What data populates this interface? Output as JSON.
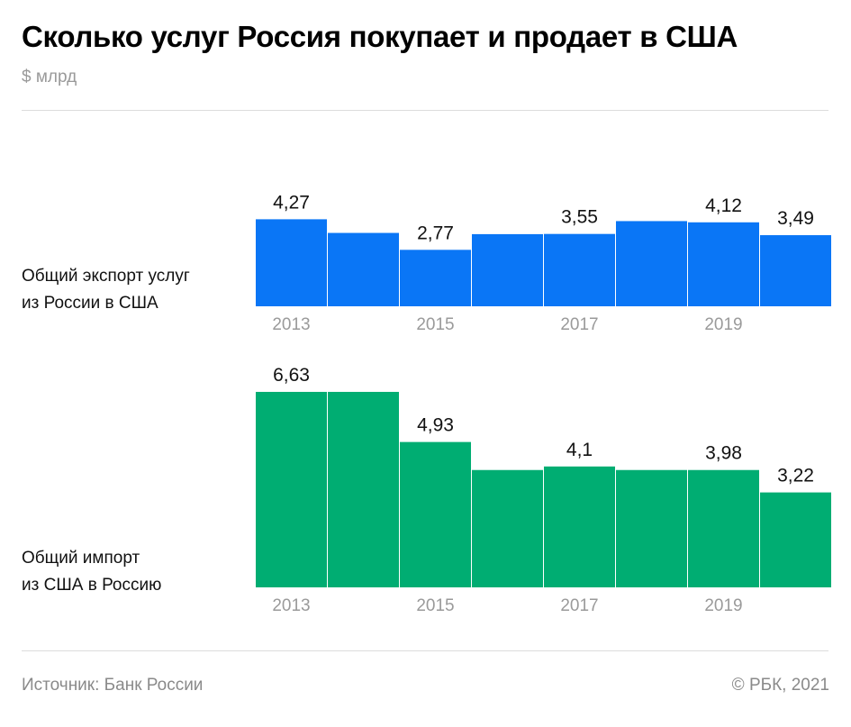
{
  "header": {
    "title": "Сколько услуг Россия покупает и продает в США",
    "subtitle": "$ млрд"
  },
  "footer": {
    "source": "Источник:  Банк России",
    "copyright": "©  РБК, 2021"
  },
  "chart_data": [
    {
      "type": "bar",
      "title": "",
      "label_line1": "Общий экспорт услуг",
      "label_line2": "из России в США",
      "categories": [
        "2013",
        "2014",
        "2015",
        "2016",
        "2017",
        "2018",
        "2019",
        "2020"
      ],
      "values": [
        4.27,
        3.6,
        2.77,
        3.54,
        3.55,
        4.18,
        4.12,
        3.49
      ],
      "data_labels": [
        "4,27",
        "",
        "2,77",
        "",
        "3,55",
        "",
        "4,12",
        "3,49"
      ],
      "tick_labels": [
        "2013",
        "",
        "2015",
        "",
        "2017",
        "",
        "2019",
        ""
      ],
      "color": "#0a76f6",
      "ylim": [
        0,
        6.63
      ],
      "grid": false
    },
    {
      "type": "bar",
      "title": "",
      "label_line1": "Общий импорт",
      "label_line2": "из США в Россию",
      "categories": [
        "2013",
        "2014",
        "2015",
        "2016",
        "2017",
        "2018",
        "2019",
        "2020"
      ],
      "values": [
        6.63,
        6.63,
        4.93,
        3.98,
        4.1,
        3.98,
        3.98,
        3.22
      ],
      "data_labels": [
        "6,63",
        "",
        "4,93",
        "",
        "4,1",
        "",
        "3,98",
        "3,22"
      ],
      "tick_labels": [
        "2013",
        "",
        "2015",
        "",
        "2017",
        "",
        "2019",
        ""
      ],
      "color": "#00ad72",
      "ylim": [
        0,
        6.63
      ],
      "grid": false
    }
  ]
}
